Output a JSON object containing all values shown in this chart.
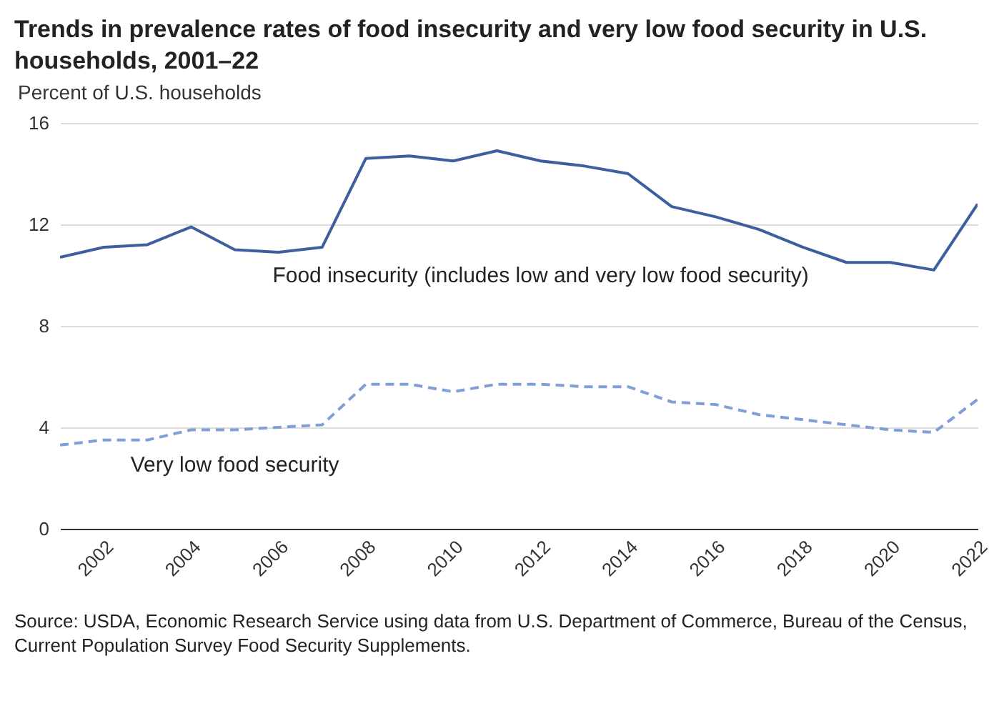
{
  "chart_data": {
    "type": "line",
    "title": "Trends in prevalence rates of food insecurity and very low food security in U.S. households, 2001–22",
    "ylabel": "Percent of U.S. households",
    "x": [
      2001,
      2002,
      2003,
      2004,
      2005,
      2006,
      2007,
      2008,
      2009,
      2010,
      2011,
      2012,
      2013,
      2014,
      2015,
      2016,
      2017,
      2018,
      2019,
      2020,
      2021,
      2022
    ],
    "series": [
      {
        "name": "Food insecurity (includes low and very low food security)",
        "color": "#3d5f9e",
        "line_style": "solid",
        "values": [
          10.7,
          11.1,
          11.2,
          11.9,
          11.0,
          10.9,
          11.1,
          14.6,
          14.7,
          14.5,
          14.9,
          14.5,
          14.3,
          14.0,
          12.7,
          12.3,
          11.8,
          11.1,
          10.5,
          10.5,
          10.2,
          12.8
        ]
      },
      {
        "name": "Very low food security",
        "color": "#7f9fd6",
        "line_style": "dashed",
        "values": [
          3.3,
          3.5,
          3.5,
          3.9,
          3.9,
          4.0,
          4.1,
          5.7,
          5.7,
          5.4,
          5.7,
          5.7,
          5.6,
          5.6,
          5.0,
          4.9,
          4.5,
          4.3,
          4.1,
          3.9,
          3.8,
          5.1
        ]
      }
    ],
    "xlim": [
      2001,
      2022
    ],
    "xticks": [
      2002,
      2004,
      2006,
      2008,
      2010,
      2012,
      2014,
      2016,
      2018,
      2020,
      2022
    ],
    "ylim": [
      0,
      16
    ],
    "yticks": [
      0,
      4,
      8,
      12,
      16
    ],
    "grid": "y",
    "legend": false,
    "marker": "none",
    "annotations": [
      "Source: USDA, Economic Research Service using data from U.S. Department of Commerce, Bureau of the Census, Current Population Survey Food Security Supplements."
    ]
  }
}
